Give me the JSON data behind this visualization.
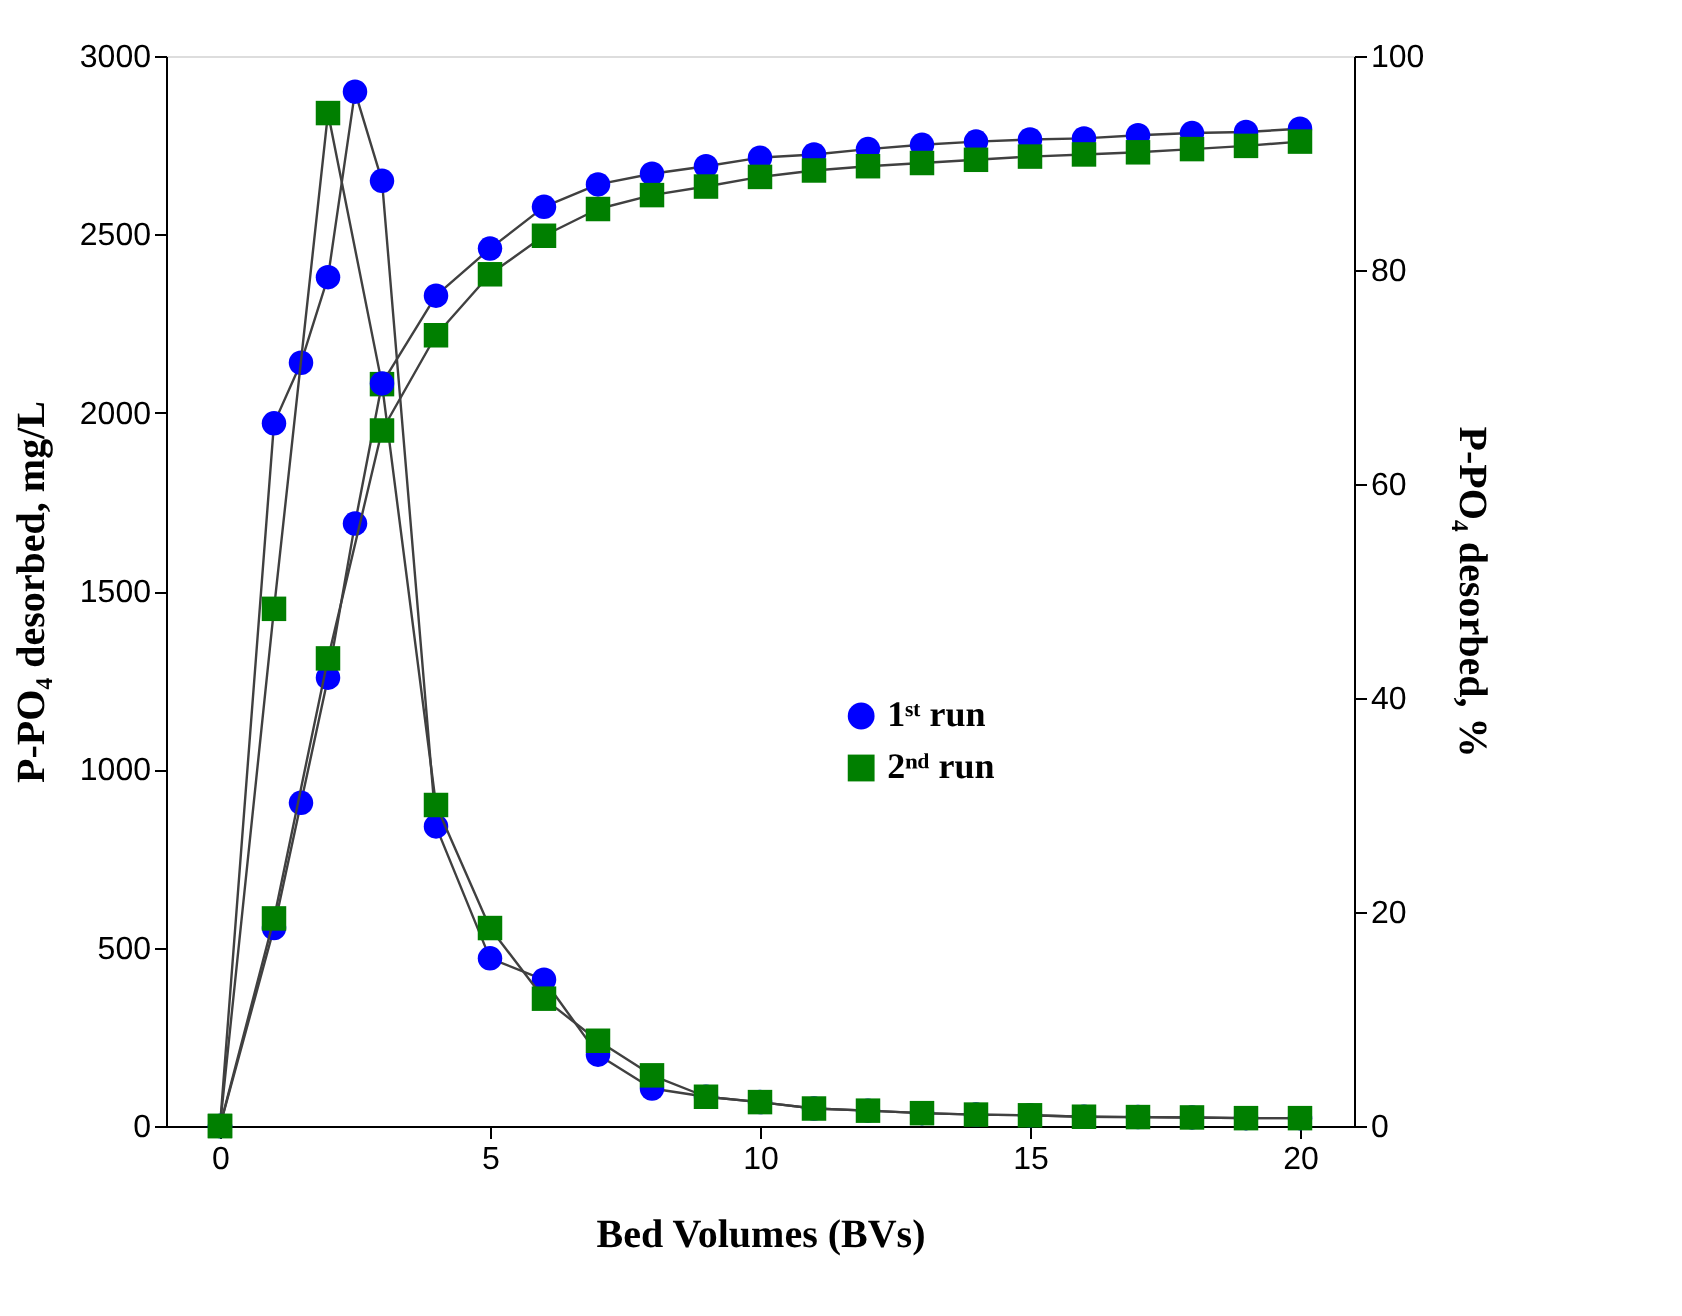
{
  "chart_data": {
    "type": "line",
    "xlabel": "Bed Volumes (BVs)",
    "ylabel": "P-PO₄ desorbed, mg/L",
    "y2label": "P-PO₄ desorbed, %",
    "xlim": [
      -1,
      21
    ],
    "xticks": [
      0,
      5,
      10,
      15,
      20
    ],
    "ylim": [
      0,
      3000
    ],
    "yticks": [
      0,
      500,
      1000,
      1500,
      2000,
      2500,
      3000
    ],
    "y2lim": [
      0,
      100
    ],
    "y2ticks": [
      0,
      20,
      40,
      60,
      80,
      100
    ],
    "grid": false,
    "legend": "right",
    "line_style": "solid",
    "series": [
      {
        "name": "1ˢᵗ run",
        "color": "#0000ff",
        "marker": "circle",
        "x": [
          0,
          1,
          1.5,
          2,
          2.5,
          3,
          4,
          5,
          6,
          7,
          8,
          9,
          10,
          11,
          12,
          13,
          14,
          15,
          16,
          17,
          18,
          19,
          20
        ],
        "values": [
          0,
          1970,
          2140,
          2380,
          2900,
          2650,
          840,
          470,
          410,
          200,
          105,
          82,
          67,
          49,
          43,
          36,
          32,
          30,
          26,
          25,
          24,
          22,
          22
        ]
      },
      {
        "name": "2ⁿᵈ run",
        "color": "#007f00",
        "marker": "square",
        "x": [
          0,
          1,
          2,
          3,
          4,
          5,
          6,
          7,
          8,
          9,
          10,
          11,
          12,
          13,
          14,
          15,
          16,
          17,
          18,
          19,
          20
        ],
        "values": [
          0,
          1450,
          2840,
          2080,
          900,
          555,
          357,
          239,
          142,
          82,
          67,
          49,
          43,
          36,
          32,
          30,
          26,
          25,
          24,
          22,
          22
        ]
      },
      {
        "color": "#0000ff",
        "marker": "circle",
        "axis": "y2",
        "x": [
          0,
          1,
          1.5,
          2,
          2.5,
          3,
          4,
          5,
          6,
          7,
          8,
          9,
          10,
          11,
          12,
          13,
          14,
          15,
          16,
          17,
          18,
          19,
          20
        ],
        "values": [
          0,
          18.5,
          30.2,
          41.9,
          56.3,
          69.4,
          77.6,
          82,
          85.9,
          88,
          89,
          89.7,
          90.5,
          90.8,
          91.3,
          91.7,
          92,
          92.2,
          92.3,
          92.6,
          92.8,
          92.9,
          93.2
        ]
      },
      {
        "color": "#007f00",
        "marker": "square",
        "axis": "y2",
        "x": [
          0,
          1,
          2,
          3,
          4,
          5,
          6,
          7,
          8,
          9,
          10,
          11,
          12,
          13,
          14,
          15,
          16,
          17,
          18,
          19,
          20
        ],
        "values": [
          0,
          19.4,
          43.7,
          65,
          73.9,
          79.6,
          83.2,
          85.7,
          87,
          87.8,
          88.7,
          89.3,
          89.7,
          90,
          90.3,
          90.6,
          90.8,
          91,
          91.3,
          91.6,
          92
        ]
      }
    ]
  }
}
